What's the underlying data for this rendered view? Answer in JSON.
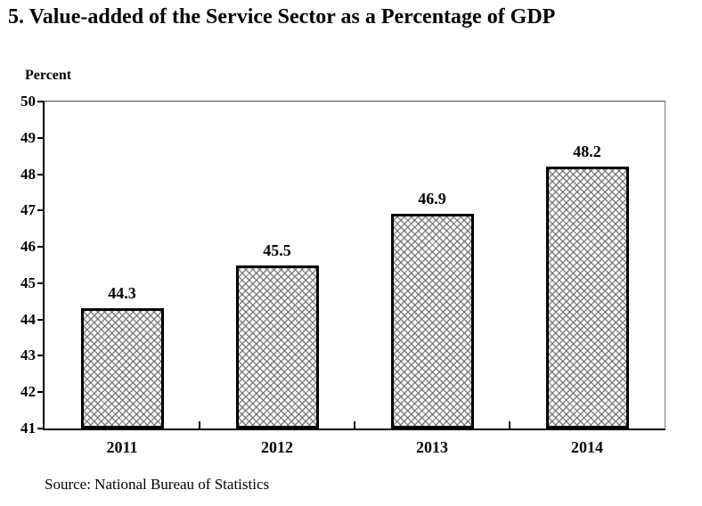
{
  "page": {
    "title": "5. Value-added of the Service Sector as a Percentage of GDP",
    "source": "Source: National Bureau of Statistics"
  },
  "chart_data": {
    "type": "bar",
    "title": "5. Value-added of the Service Sector as a Percentage of GDP",
    "ylabel": "Percent",
    "xlabel": "",
    "categories": [
      "2011",
      "2012",
      "2013",
      "2014"
    ],
    "values": [
      44.3,
      45.5,
      46.9,
      48.2
    ],
    "value_labels": [
      "44.3",
      "45.5",
      "46.9",
      "48.2"
    ],
    "ylim": [
      41,
      50
    ],
    "yticks": [
      41,
      42,
      43,
      44,
      45,
      46,
      47,
      48,
      49,
      50
    ],
    "grid": false,
    "legend": "none",
    "source": "Source: National Bureau of Statistics",
    "bar_style": "diagonal-crosshatch",
    "colors": {
      "bar_hatch": "#6e6e6e",
      "bar_background": "#fdfdfd",
      "bar_border": "#000000",
      "axis": "#000000",
      "frame": "#787878",
      "text": "#000000",
      "background": "#ffffff"
    }
  }
}
